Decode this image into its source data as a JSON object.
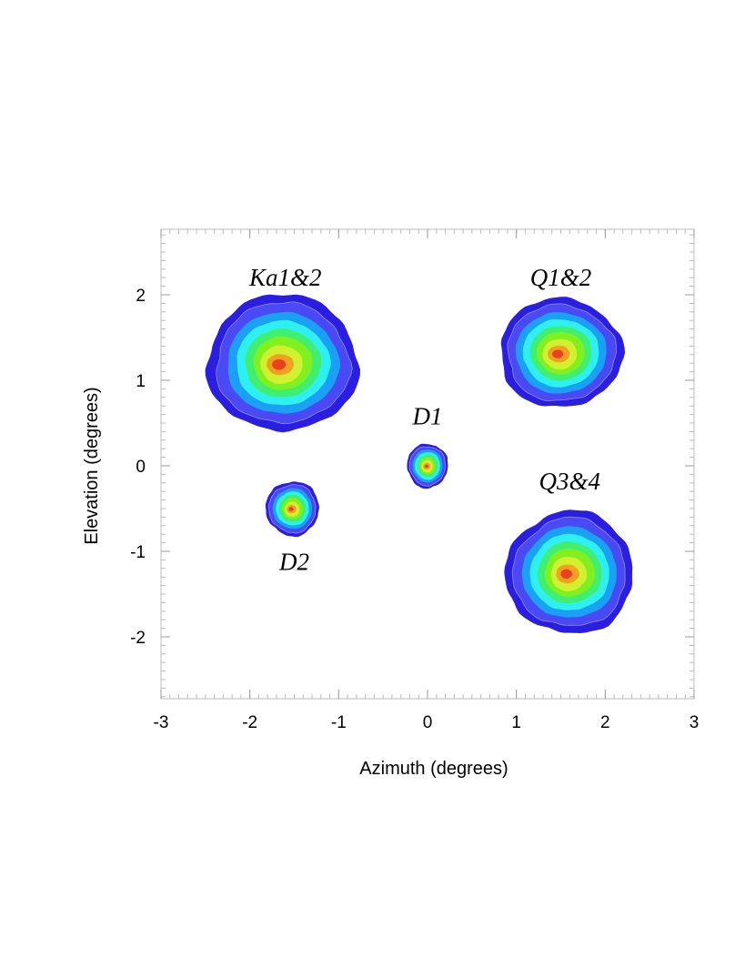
{
  "chart_data": {
    "type": "contour",
    "xlabel": "Azimuth (degrees)",
    "ylabel": "Elevation (degrees)",
    "xlim": [
      -3,
      3
    ],
    "ylim": [
      -2.7,
      2.75
    ],
    "x_ticks": [
      -3,
      -2,
      -1,
      0,
      1,
      2,
      3
    ],
    "y_ticks": [
      -2,
      -1,
      0,
      1,
      2
    ],
    "grid": false,
    "contour_colors": [
      "#2a1ee0",
      "#4a4af5",
      "#1aa0f5",
      "#2ff0f0",
      "#40ee70",
      "#80f020",
      "#d0f030",
      "#f2a020",
      "#e84020"
    ],
    "beams": [
      {
        "label": "Ka1&2",
        "az": -1.63,
        "el": 1.2,
        "radius_az": 0.85,
        "radius_el": 0.8,
        "label_az": -1.6,
        "label_el": 2.2
      },
      {
        "label": "Q1&2",
        "az": 1.5,
        "el": 1.32,
        "radius_az": 0.69,
        "radius_el": 0.64,
        "label_az": 1.5,
        "label_el": 2.2
      },
      {
        "label": "D1",
        "az": 0.0,
        "el": 0.0,
        "radius_az": 0.23,
        "radius_el": 0.26,
        "label_az": 0.0,
        "label_el": 0.58
      },
      {
        "label": "D2",
        "az": -1.52,
        "el": -0.5,
        "radius_az": 0.3,
        "radius_el": 0.32,
        "label_az": -1.5,
        "label_el": -1.12
      },
      {
        "label": "Q3&4",
        "az": 1.6,
        "el": -1.25,
        "radius_az": 0.72,
        "radius_el": 0.72,
        "label_az": 1.6,
        "label_el": -0.18
      }
    ]
  }
}
